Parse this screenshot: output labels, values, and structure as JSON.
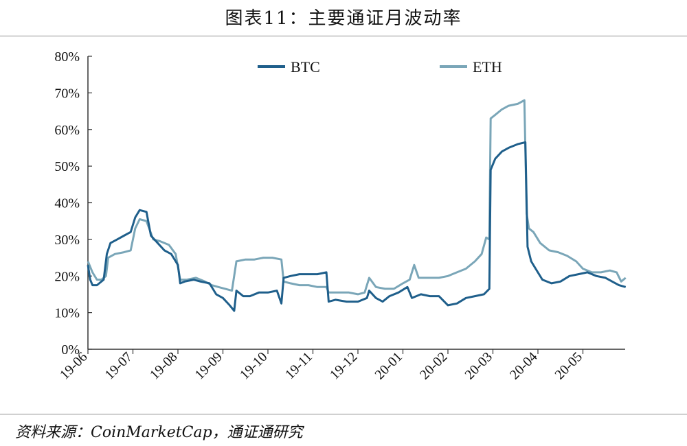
{
  "header": {
    "title": "图表11：主要通证月波动率"
  },
  "footer": {
    "source": "资料来源：CoinMarketCap，通证通研究"
  },
  "colors": {
    "btc": "#1f5f8b",
    "eth": "#7aa6b8",
    "axis": "#333333"
  },
  "chart_data": {
    "type": "line",
    "title": "图表11：主要通证月波动率",
    "xlabel": "",
    "ylabel": "",
    "ylim": [
      0,
      80
    ],
    "yticks": [
      "0%",
      "10%",
      "20%",
      "30%",
      "40%",
      "50%",
      "60%",
      "70%",
      "80%"
    ],
    "x_months": [
      "19-06",
      "19-07",
      "19-08",
      "19-09",
      "19-10",
      "19-11",
      "19-12",
      "20-01",
      "20-02",
      "20-03",
      "20-04",
      "20-05"
    ],
    "grid": false,
    "legend_position": "top",
    "series": [
      {
        "name": "BTC",
        "points": [
          [
            0,
            23
          ],
          [
            0.05,
            19
          ],
          [
            0.1,
            17.5
          ],
          [
            0.2,
            17.5
          ],
          [
            0.35,
            19
          ],
          [
            0.42,
            26
          ],
          [
            0.5,
            29
          ],
          [
            0.65,
            30
          ],
          [
            0.8,
            31
          ],
          [
            0.95,
            32
          ],
          [
            1.05,
            36
          ],
          [
            1.15,
            38
          ],
          [
            1.3,
            37.5
          ],
          [
            1.4,
            31
          ],
          [
            1.55,
            29
          ],
          [
            1.7,
            27
          ],
          [
            1.85,
            26
          ],
          [
            2.0,
            23
          ],
          [
            2.05,
            18
          ],
          [
            2.15,
            18.5
          ],
          [
            2.35,
            19
          ],
          [
            2.5,
            18.5
          ],
          [
            2.7,
            18
          ],
          [
            2.85,
            15
          ],
          [
            3.0,
            14
          ],
          [
            3.15,
            12
          ],
          [
            3.25,
            10.5
          ],
          [
            3.3,
            16
          ],
          [
            3.45,
            14.5
          ],
          [
            3.6,
            14.5
          ],
          [
            3.8,
            15.5
          ],
          [
            4.0,
            15.5
          ],
          [
            4.2,
            16
          ],
          [
            4.3,
            12.5
          ],
          [
            4.35,
            19.5
          ],
          [
            4.5,
            20
          ],
          [
            4.7,
            20.5
          ],
          [
            4.9,
            20.5
          ],
          [
            5.1,
            20.5
          ],
          [
            5.3,
            21
          ],
          [
            5.35,
            13
          ],
          [
            5.5,
            13.5
          ],
          [
            5.75,
            13
          ],
          [
            6.0,
            13
          ],
          [
            6.2,
            14
          ],
          [
            6.25,
            16
          ],
          [
            6.4,
            14
          ],
          [
            6.55,
            13
          ],
          [
            6.7,
            14.5
          ],
          [
            6.9,
            15.5
          ],
          [
            7.1,
            17
          ],
          [
            7.2,
            14
          ],
          [
            7.4,
            15
          ],
          [
            7.6,
            14.5
          ],
          [
            7.8,
            14.5
          ],
          [
            8.0,
            12
          ],
          [
            8.2,
            12.5
          ],
          [
            8.4,
            14
          ],
          [
            8.6,
            14.5
          ],
          [
            8.8,
            15
          ],
          [
            8.92,
            16.5
          ],
          [
            8.95,
            49
          ],
          [
            9.05,
            52
          ],
          [
            9.2,
            54
          ],
          [
            9.35,
            55
          ],
          [
            9.55,
            56
          ],
          [
            9.72,
            56.5
          ],
          [
            9.77,
            28
          ],
          [
            9.85,
            24
          ],
          [
            9.95,
            22
          ],
          [
            10.1,
            19
          ],
          [
            10.3,
            18
          ],
          [
            10.5,
            18.5
          ],
          [
            10.7,
            20
          ],
          [
            10.9,
            20.5
          ],
          [
            11.1,
            21
          ],
          [
            11.3,
            20
          ],
          [
            11.5,
            19.5
          ],
          [
            11.65,
            18.5
          ],
          [
            11.8,
            17.5
          ],
          [
            11.95,
            17
          ]
        ]
      },
      {
        "name": "ETH",
        "points": [
          [
            0,
            24
          ],
          [
            0.1,
            21
          ],
          [
            0.2,
            19
          ],
          [
            0.3,
            19
          ],
          [
            0.4,
            20
          ],
          [
            0.45,
            25
          ],
          [
            0.6,
            26
          ],
          [
            0.8,
            26.5
          ],
          [
            0.95,
            27
          ],
          [
            1.05,
            33
          ],
          [
            1.15,
            35.5
          ],
          [
            1.3,
            35
          ],
          [
            1.45,
            30
          ],
          [
            1.6,
            29.5
          ],
          [
            1.8,
            28.5
          ],
          [
            1.95,
            26
          ],
          [
            2.05,
            19
          ],
          [
            2.2,
            19
          ],
          [
            2.4,
            19.5
          ],
          [
            2.6,
            18.5
          ],
          [
            2.75,
            17.5
          ],
          [
            2.9,
            17
          ],
          [
            3.05,
            16.5
          ],
          [
            3.2,
            16
          ],
          [
            3.3,
            24
          ],
          [
            3.5,
            24.5
          ],
          [
            3.7,
            24.5
          ],
          [
            3.9,
            25
          ],
          [
            4.1,
            25
          ],
          [
            4.3,
            24.5
          ],
          [
            4.35,
            18.5
          ],
          [
            4.5,
            18
          ],
          [
            4.7,
            17.5
          ],
          [
            4.9,
            17.5
          ],
          [
            5.1,
            17
          ],
          [
            5.3,
            17
          ],
          [
            5.35,
            15.5
          ],
          [
            5.55,
            15.5
          ],
          [
            5.8,
            15.5
          ],
          [
            6.0,
            15
          ],
          [
            6.15,
            15.5
          ],
          [
            6.25,
            19.5
          ],
          [
            6.4,
            17
          ],
          [
            6.6,
            16.5
          ],
          [
            6.8,
            16.5
          ],
          [
            7.0,
            18
          ],
          [
            7.15,
            19
          ],
          [
            7.25,
            23
          ],
          [
            7.35,
            19.5
          ],
          [
            7.6,
            19.5
          ],
          [
            7.8,
            19.5
          ],
          [
            8.0,
            20
          ],
          [
            8.2,
            21
          ],
          [
            8.4,
            22
          ],
          [
            8.6,
            24
          ],
          [
            8.75,
            26
          ],
          [
            8.85,
            30.5
          ],
          [
            8.92,
            30
          ],
          [
            8.95,
            63
          ],
          [
            9.05,
            64
          ],
          [
            9.2,
            65.5
          ],
          [
            9.35,
            66.5
          ],
          [
            9.55,
            67
          ],
          [
            9.7,
            68
          ],
          [
            9.75,
            37
          ],
          [
            9.8,
            33
          ],
          [
            9.9,
            32
          ],
          [
            10.05,
            29
          ],
          [
            10.25,
            27
          ],
          [
            10.45,
            26.5
          ],
          [
            10.65,
            25.5
          ],
          [
            10.85,
            24
          ],
          [
            11.0,
            22
          ],
          [
            11.2,
            21
          ],
          [
            11.4,
            21
          ],
          [
            11.6,
            21.5
          ],
          [
            11.75,
            21
          ],
          [
            11.85,
            18.5
          ],
          [
            11.95,
            19.5
          ]
        ]
      }
    ]
  }
}
